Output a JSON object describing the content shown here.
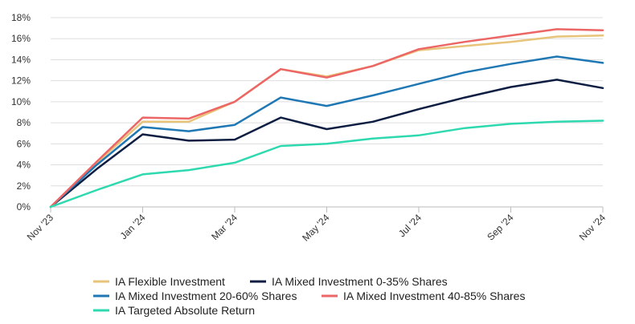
{
  "chart_data": {
    "type": "line",
    "title": "",
    "xlabel": "",
    "ylabel": "",
    "ylim": [
      0,
      18
    ],
    "y_ticks": [
      "0%",
      "2%",
      "4%",
      "6%",
      "8%",
      "10%",
      "12%",
      "14%",
      "16%",
      "18%"
    ],
    "y_tick_values": [
      0,
      2,
      4,
      6,
      8,
      10,
      12,
      14,
      16,
      18
    ],
    "x_ticks": [
      "Nov '23",
      "Jan '24",
      "Mar '24",
      "May '24",
      "Jul '24",
      "Sep '24",
      "Nov '24"
    ],
    "x_tick_index": [
      0,
      2,
      4,
      6,
      8,
      10,
      12
    ],
    "x": [
      "Nov '23",
      "Dec '23",
      "Jan '24",
      "Feb '24",
      "Mar '24",
      "Apr '24",
      "May '24",
      "Jun '24",
      "Jul '24",
      "Aug '24",
      "Sep '24",
      "Oct '24",
      "Nov '24"
    ],
    "grid": "horizontal",
    "legend_position": "bottom",
    "series": [
      {
        "name": "IA Flexible Investment",
        "color": "#e8c37a",
        "values": [
          0,
          4.2,
          8.1,
          8.1,
          10.0,
          13.1,
          12.4,
          13.4,
          14.9,
          15.3,
          15.7,
          16.2,
          16.3
        ]
      },
      {
        "name": "IA Mixed Investment 0-35% Shares",
        "color": "#0e1e42",
        "values": [
          0,
          3.6,
          6.9,
          6.3,
          6.4,
          8.5,
          7.4,
          8.1,
          9.3,
          10.4,
          11.4,
          12.1,
          11.3
        ]
      },
      {
        "name": "IA Mixed Investment 20-60% Shares",
        "color": "#1f78b4",
        "values": [
          0,
          4.0,
          7.6,
          7.2,
          7.8,
          10.4,
          9.6,
          10.6,
          11.7,
          12.8,
          13.6,
          14.3,
          13.7
        ]
      },
      {
        "name": "IA Mixed Investment 40-85% Shares",
        "color": "#ec6666",
        "values": [
          0,
          4.3,
          8.5,
          8.4,
          10.0,
          13.1,
          12.3,
          13.4,
          15.0,
          15.7,
          16.3,
          16.9,
          16.8
        ]
      },
      {
        "name": "IA Targeted Absolute Return",
        "color": "#2fd9b0",
        "values": [
          0,
          1.6,
          3.1,
          3.5,
          4.2,
          5.8,
          6.0,
          6.5,
          6.8,
          7.5,
          7.9,
          8.1,
          8.2
        ]
      }
    ]
  }
}
